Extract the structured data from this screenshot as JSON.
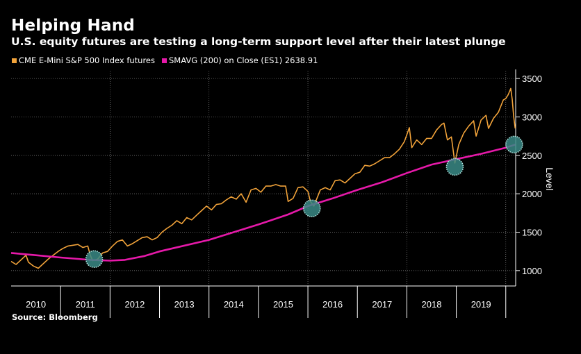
{
  "header": {
    "title": "Helping Hand",
    "subtitle": "U.S. equity futures are testing a long-term support level after their latest plunge"
  },
  "legend": {
    "series1_label": "CME E-Mini S&P 500 Index futures",
    "series2_label": "SMAVG (200)  on Close (ES1) 2638.91"
  },
  "source": "Source: Bloomberg",
  "colors": {
    "price": "#f2a33a",
    "sma": "#e619a9",
    "grid": "#8a8a8a",
    "circle_fill": "#3a8a86",
    "circle_border": "#b9f0ea"
  },
  "chart_data": {
    "type": "line",
    "ylabel": "Level",
    "xlabel": "",
    "x_categories": [
      "2010",
      "2011",
      "2012",
      "2013",
      "2014",
      "2015",
      "2016",
      "2017",
      "2018",
      "2019"
    ],
    "x_range": [
      2010.0,
      2020.2
    ],
    "ylim": [
      800,
      3600
    ],
    "yticks": [
      1000,
      1500,
      2000,
      2500,
      3000,
      3500
    ],
    "grid": true,
    "series": [
      {
        "name": "CME E-Mini S&P 500 Index futures",
        "points": [
          [
            2010.0,
            1120
          ],
          [
            2010.1,
            1080
          ],
          [
            2010.2,
            1140
          ],
          [
            2010.3,
            1200
          ],
          [
            2010.35,
            1110
          ],
          [
            2010.45,
            1060
          ],
          [
            2010.55,
            1030
          ],
          [
            2010.65,
            1090
          ],
          [
            2010.75,
            1150
          ],
          [
            2010.85,
            1200
          ],
          [
            2010.95,
            1250
          ],
          [
            2011.05,
            1290
          ],
          [
            2011.15,
            1320
          ],
          [
            2011.25,
            1330
          ],
          [
            2011.35,
            1340
          ],
          [
            2011.45,
            1300
          ],
          [
            2011.55,
            1320
          ],
          [
            2011.6,
            1200
          ],
          [
            2011.65,
            1130
          ],
          [
            2011.75,
            1150
          ],
          [
            2011.85,
            1230
          ],
          [
            2011.95,
            1250
          ],
          [
            2012.05,
            1320
          ],
          [
            2012.15,
            1380
          ],
          [
            2012.25,
            1400
          ],
          [
            2012.35,
            1320
          ],
          [
            2012.45,
            1350
          ],
          [
            2012.55,
            1390
          ],
          [
            2012.65,
            1430
          ],
          [
            2012.75,
            1440
          ],
          [
            2012.85,
            1400
          ],
          [
            2012.95,
            1430
          ],
          [
            2013.05,
            1500
          ],
          [
            2013.15,
            1550
          ],
          [
            2013.25,
            1590
          ],
          [
            2013.35,
            1650
          ],
          [
            2013.45,
            1610
          ],
          [
            2013.55,
            1690
          ],
          [
            2013.65,
            1660
          ],
          [
            2013.75,
            1720
          ],
          [
            2013.85,
            1780
          ],
          [
            2013.95,
            1840
          ],
          [
            2014.05,
            1790
          ],
          [
            2014.15,
            1860
          ],
          [
            2014.25,
            1870
          ],
          [
            2014.35,
            1920
          ],
          [
            2014.45,
            1960
          ],
          [
            2014.55,
            1930
          ],
          [
            2014.65,
            2000
          ],
          [
            2014.75,
            1890
          ],
          [
            2014.85,
            2050
          ],
          [
            2014.95,
            2070
          ],
          [
            2015.05,
            2020
          ],
          [
            2015.15,
            2100
          ],
          [
            2015.25,
            2100
          ],
          [
            2015.35,
            2120
          ],
          [
            2015.45,
            2100
          ],
          [
            2015.55,
            2100
          ],
          [
            2015.6,
            1900
          ],
          [
            2015.7,
            1940
          ],
          [
            2015.8,
            2080
          ],
          [
            2015.9,
            2090
          ],
          [
            2016.0,
            2030
          ],
          [
            2016.05,
            1900
          ],
          [
            2016.12,
            1840
          ],
          [
            2016.25,
            2050
          ],
          [
            2016.35,
            2080
          ],
          [
            2016.45,
            2050
          ],
          [
            2016.55,
            2170
          ],
          [
            2016.65,
            2180
          ],
          [
            2016.75,
            2140
          ],
          [
            2016.85,
            2200
          ],
          [
            2016.95,
            2260
          ],
          [
            2017.05,
            2280
          ],
          [
            2017.15,
            2370
          ],
          [
            2017.25,
            2360
          ],
          [
            2017.35,
            2390
          ],
          [
            2017.45,
            2430
          ],
          [
            2017.55,
            2470
          ],
          [
            2017.65,
            2470
          ],
          [
            2017.75,
            2520
          ],
          [
            2017.85,
            2580
          ],
          [
            2017.95,
            2680
          ],
          [
            2018.05,
            2860
          ],
          [
            2018.1,
            2600
          ],
          [
            2018.2,
            2700
          ],
          [
            2018.3,
            2640
          ],
          [
            2018.4,
            2720
          ],
          [
            2018.5,
            2720
          ],
          [
            2018.6,
            2830
          ],
          [
            2018.7,
            2900
          ],
          [
            2018.75,
            2920
          ],
          [
            2018.82,
            2700
          ],
          [
            2018.9,
            2740
          ],
          [
            2018.97,
            2400
          ],
          [
            2019.05,
            2640
          ],
          [
            2019.15,
            2790
          ],
          [
            2019.25,
            2880
          ],
          [
            2019.35,
            2950
          ],
          [
            2019.4,
            2750
          ],
          [
            2019.5,
            2960
          ],
          [
            2019.6,
            3020
          ],
          [
            2019.65,
            2850
          ],
          [
            2019.75,
            2980
          ],
          [
            2019.85,
            3060
          ],
          [
            2019.95,
            3220
          ],
          [
            2020.0,
            3240
          ],
          [
            2020.05,
            3290
          ],
          [
            2020.1,
            3370
          ],
          [
            2020.13,
            3230
          ],
          [
            2020.16,
            3000
          ],
          [
            2020.19,
            2850
          ]
        ]
      },
      {
        "name": "SMAVG (200)  on Close (ES1) 2638.91",
        "points": [
          [
            2010.0,
            1230
          ],
          [
            2010.5,
            1200
          ],
          [
            2011.0,
            1170
          ],
          [
            2011.6,
            1140
          ],
          [
            2012.0,
            1130
          ],
          [
            2012.3,
            1140
          ],
          [
            2012.7,
            1190
          ],
          [
            2013.0,
            1250
          ],
          [
            2014.0,
            1400
          ],
          [
            2015.0,
            1600
          ],
          [
            2015.6,
            1730
          ],
          [
            2016.0,
            1840
          ],
          [
            2016.5,
            1940
          ],
          [
            2017.0,
            2050
          ],
          [
            2017.5,
            2150
          ],
          [
            2018.0,
            2270
          ],
          [
            2018.5,
            2380
          ],
          [
            2019.0,
            2450
          ],
          [
            2019.5,
            2520
          ],
          [
            2020.0,
            2600
          ],
          [
            2020.19,
            2640
          ]
        ]
      }
    ],
    "highlights": [
      [
        2011.68,
        1150
      ],
      [
        2016.08,
        1810
      ],
      [
        2018.97,
        2350
      ],
      [
        2020.17,
        2640
      ]
    ]
  }
}
